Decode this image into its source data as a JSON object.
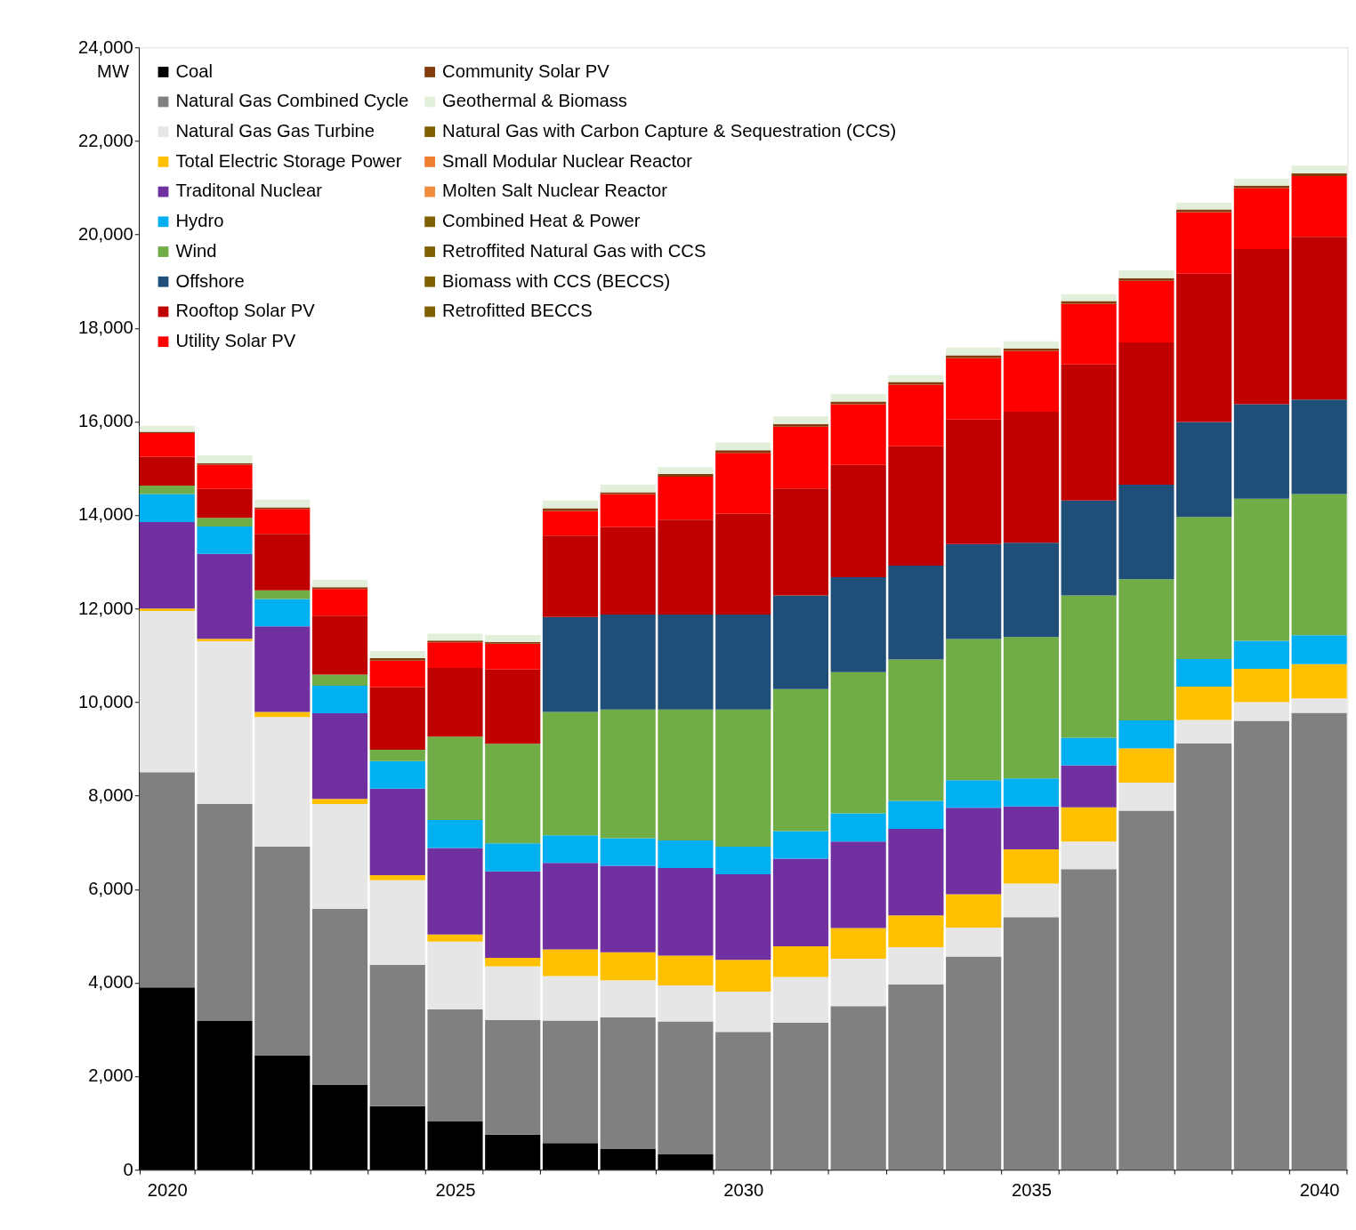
{
  "chart_data": {
    "type": "bar",
    "stacked": true,
    "ylabel": "MW",
    "legend": "top left",
    "grid": false,
    "categories": [
      "2020",
      null,
      null,
      null,
      null,
      "2025",
      null,
      null,
      null,
      null,
      "2030",
      null,
      null,
      null,
      null,
      "2035",
      null,
      null,
      null,
      null,
      "2040"
    ],
    "ylim": [
      0,
      24000
    ],
    "yticks": [
      0,
      {
        "value": 2000,
        "label": "2,000"
      },
      {
        "value": 4000,
        "label": "4,000"
      },
      {
        "value": 6000,
        "label": "6,000"
      },
      {
        "value": 8000,
        "label": "8,000"
      },
      {
        "value": 10000,
        "label": "10,000"
      },
      {
        "value": 12000,
        "label": "12,000"
      },
      {
        "value": 14000,
        "label": "14,000"
      },
      {
        "value": 16000,
        "label": "16,000"
      },
      {
        "value": 18000,
        "label": "18,000"
      },
      {
        "value": 20000,
        "label": "20,000"
      },
      {
        "value": 22000,
        "label": "22,000"
      },
      {
        "value": 24000,
        "label": "24,000"
      }
    ],
    "series": [
      {
        "name": "Coal",
        "color": "#000000",
        "values": [
          3900,
          3190,
          2440,
          1810,
          1360,
          1030,
          750,
          570,
          440,
          330,
          0,
          0,
          0,
          0,
          0,
          0,
          0,
          0,
          0,
          0,
          0
        ]
      },
      {
        "name": "Natural Gas Combined Cycle",
        "color": "#808080",
        "values": [
          4600,
          4630,
          4470,
          3770,
          3020,
          2400,
          2450,
          2620,
          2820,
          2840,
          2950,
          3150,
          3500,
          3960,
          4560,
          5400,
          6430,
          7680,
          9120,
          9600,
          9770
        ]
      },
      {
        "name": "Natural Gas Gas Turbine",
        "color": "#e6e6e6",
        "values": [
          3450,
          3480,
          2770,
          2240,
          1810,
          1450,
          1150,
          950,
          790,
          770,
          860,
          970,
          1010,
          800,
          620,
          720,
          590,
          600,
          500,
          400,
          310
        ]
      },
      {
        "name": "Total Electric Storage Power",
        "color": "#ffc000",
        "values": [
          50,
          55,
          110,
          110,
          110,
          150,
          180,
          570,
          600,
          640,
          680,
          660,
          660,
          680,
          710,
          730,
          730,
          730,
          710,
          710,
          730
        ]
      },
      {
        "name": "Traditonal Nuclear",
        "color": "#7030a0",
        "values": [
          1850,
          1815,
          1830,
          1830,
          1850,
          1850,
          1850,
          1850,
          1850,
          1870,
          1830,
          1870,
          1850,
          1850,
          1850,
          920,
          900,
          0,
          0,
          0,
          0
        ]
      },
      {
        "name": "Hydro",
        "color": "#00b0f0",
        "values": [
          600,
          585,
          585,
          590,
          590,
          600,
          600,
          590,
          590,
          590,
          590,
          590,
          600,
          600,
          590,
          600,
          590,
          600,
          590,
          600,
          620
        ]
      },
      {
        "name": "Wind",
        "color": "#70ad47",
        "values": [
          180,
          185,
          185,
          240,
          240,
          1780,
          2130,
          2640,
          2750,
          2800,
          2930,
          3040,
          3020,
          3020,
          3020,
          3020,
          3040,
          3020,
          3040,
          3040,
          3020
        ]
      },
      {
        "name": "Offshore",
        "color": "#1f4e79",
        "values": [
          0,
          0,
          0,
          0,
          0,
          0,
          0,
          2030,
          2030,
          2030,
          2030,
          2000,
          2030,
          2010,
          2030,
          2020,
          2030,
          2020,
          2030,
          2020,
          2020
        ]
      },
      {
        "name": "Rooftop Solar PV",
        "color": "#c00000",
        "values": [
          620,
          620,
          1210,
          1260,
          1340,
          1470,
          1590,
          1740,
          1870,
          2030,
          2160,
          2290,
          2400,
          2550,
          2660,
          2800,
          2910,
          3040,
          3170,
          3320,
          3480
        ]
      },
      {
        "name": "Utility Solar PV",
        "color": "#ff0000",
        "values": [
          500,
          515,
          530,
          570,
          570,
          550,
          550,
          530,
          710,
          920,
          1300,
          1320,
          1300,
          1320,
          1320,
          1300,
          1300,
          1320,
          1320,
          1300,
          1300
        ]
      },
      {
        "name": "Community Solar PV",
        "color": "#843c0c",
        "values": [
          30,
          35,
          35,
          35,
          50,
          35,
          35,
          55,
          35,
          55,
          55,
          55,
          55,
          55,
          55,
          55,
          55,
          55,
          55,
          55,
          55
        ]
      },
      {
        "name": "Geothermal & Biomass",
        "color": "#e2efda",
        "values": [
          130,
          165,
          165,
          165,
          150,
          150,
          150,
          165,
          165,
          150,
          165,
          165,
          165,
          150,
          165,
          150,
          150,
          165,
          145,
          145,
          165
        ]
      },
      {
        "name": "Natural Gas with Carbon Capture & Sequestration (CCS)",
        "color": "#7f6000",
        "values": [
          0,
          0,
          0,
          0,
          0,
          0,
          0,
          0,
          0,
          0,
          0,
          0,
          0,
          0,
          0,
          0,
          0,
          0,
          0,
          0,
          0
        ]
      },
      {
        "name": "Small Modular Nuclear Reactor",
        "color": "#ed7d31",
        "values": [
          0,
          0,
          0,
          0,
          0,
          0,
          0,
          0,
          0,
          0,
          0,
          0,
          0,
          0,
          0,
          0,
          0,
          0,
          0,
          0,
          0
        ]
      },
      {
        "name": "Molten Salt Nuclear Reactor",
        "color": "#f08c3c",
        "values": [
          0,
          0,
          0,
          0,
          0,
          0,
          0,
          0,
          0,
          0,
          0,
          0,
          0,
          0,
          0,
          0,
          0,
          0,
          0,
          0,
          0
        ]
      },
      {
        "name": "Combined Heat & Power",
        "color": "#7f6000",
        "values": [
          0,
          0,
          0,
          0,
          0,
          0,
          0,
          0,
          0,
          0,
          0,
          0,
          0,
          0,
          0,
          0,
          0,
          0,
          0,
          0,
          0
        ]
      },
      {
        "name": "Retroffited Natural Gas with CCS",
        "color": "#7f6000",
        "values": [
          0,
          0,
          0,
          0,
          0,
          0,
          0,
          0,
          0,
          0,
          0,
          0,
          0,
          0,
          0,
          0,
          0,
          0,
          0,
          0,
          0
        ]
      },
      {
        "name": "Biomass with CCS (BECCS)",
        "color": "#7f6000",
        "values": [
          0,
          0,
          0,
          0,
          0,
          0,
          0,
          0,
          0,
          0,
          0,
          0,
          0,
          0,
          0,
          0,
          0,
          0,
          0,
          0,
          0
        ]
      },
      {
        "name": "Retrofitted BECCS",
        "color": "#7f6000",
        "values": [
          0,
          0,
          0,
          0,
          0,
          0,
          0,
          0,
          0,
          0,
          0,
          0,
          0,
          0,
          0,
          0,
          0,
          0,
          0,
          0,
          0
        ]
      }
    ]
  }
}
